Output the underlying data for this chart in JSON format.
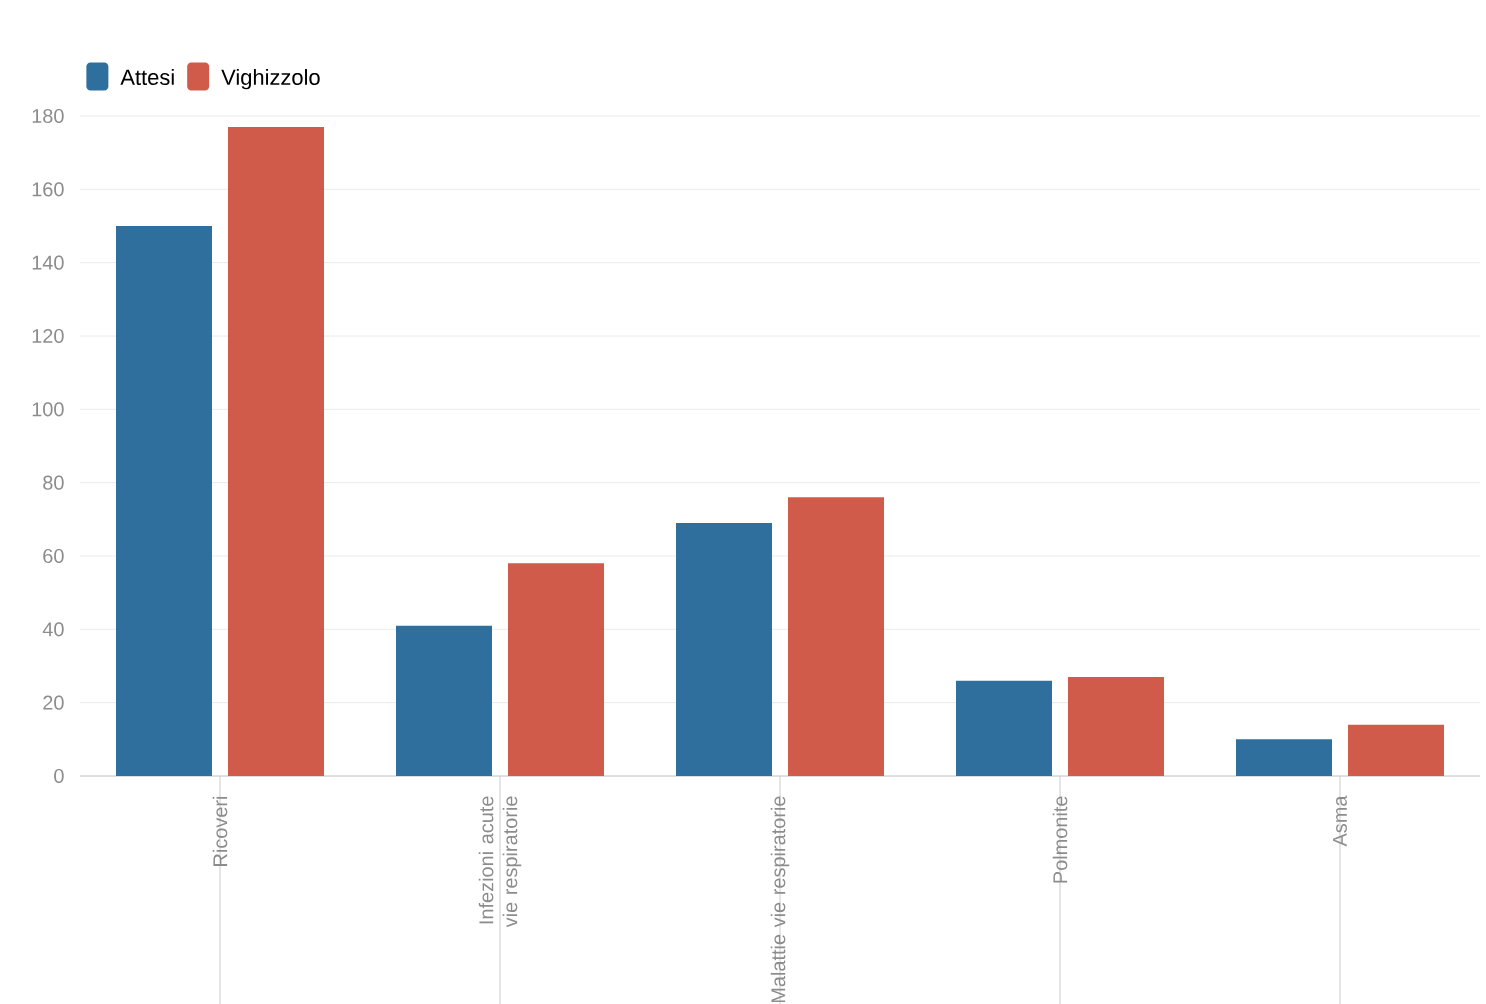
{
  "chart_data": {
    "type": "bar",
    "categories": [
      "Ricoveri",
      "Infezioni acute vie respiratorie",
      "Malattie vie respiratorie",
      "Polmonite",
      "Asma"
    ],
    "series": [
      {
        "name": "Attesi",
        "color": "#2f6f9d",
        "values": [
          150,
          41,
          69,
          26,
          10
        ]
      },
      {
        "name": "Vighizzolo",
        "color": "#d15b4b",
        "values": [
          177,
          58,
          76,
          27,
          14
        ]
      }
    ],
    "ylim": [
      0,
      180
    ],
    "yticks": [
      0,
      20,
      40,
      60,
      80,
      100,
      120,
      140,
      160,
      180
    ],
    "grid": "y",
    "legend": "top left"
  }
}
